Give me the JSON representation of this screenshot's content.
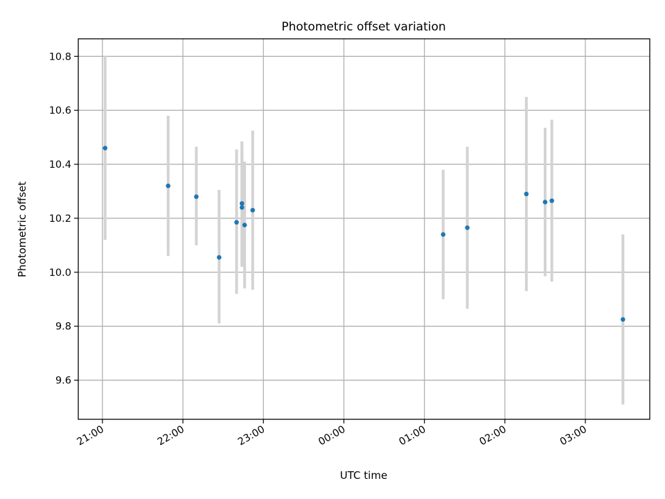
{
  "chart_data": {
    "type": "scatter",
    "title": "Photometric offset variation",
    "xlabel": "UTC time",
    "ylabel": "Photometric offset",
    "x_axis_kind": "time (HH:MM UTC)",
    "xlim": [
      "20:42",
      "03:48"
    ],
    "ylim": [
      9.455,
      10.865
    ],
    "x_ticks": [
      {
        "time": "21:00",
        "label": "21:00"
      },
      {
        "time": "22:00",
        "label": "22:00"
      },
      {
        "time": "23:00",
        "label": "23:00"
      },
      {
        "time": "00:00",
        "label": "00:00"
      },
      {
        "time": "01:00",
        "label": "01:00"
      },
      {
        "time": "02:00",
        "label": "02:00"
      },
      {
        "time": "03:00",
        "label": "03:00"
      }
    ],
    "y_ticks": [
      {
        "value": 9.6,
        "label": "9.6"
      },
      {
        "value": 9.8,
        "label": "9.8"
      },
      {
        "value": 10.0,
        "label": "10.0"
      },
      {
        "value": 10.2,
        "label": "10.2"
      },
      {
        "value": 10.4,
        "label": "10.4"
      },
      {
        "value": 10.6,
        "label": "10.6"
      },
      {
        "value": 10.8,
        "label": "10.8"
      }
    ],
    "grid": true,
    "marker_color": "#1f77b4",
    "errorbar_color": "#d3d3d3",
    "points": [
      {
        "time": "21:02",
        "y": 10.46,
        "lo": 10.12,
        "hi": 10.8
      },
      {
        "time": "21:49",
        "y": 10.32,
        "lo": 10.06,
        "hi": 10.58
      },
      {
        "time": "22:10",
        "y": 10.28,
        "lo": 10.1,
        "hi": 10.465
      },
      {
        "time": "22:27",
        "y": 10.055,
        "lo": 9.81,
        "hi": 10.305
      },
      {
        "time": "22:40",
        "y": 10.185,
        "lo": 9.92,
        "hi": 10.455
      },
      {
        "time": "22:44",
        "y": 10.255,
        "lo": 10.03,
        "hi": 10.485
      },
      {
        "time": "22:44",
        "y": 10.24,
        "lo": 10.02,
        "hi": 10.47
      },
      {
        "time": "22:46",
        "y": 10.175,
        "lo": 9.94,
        "hi": 10.41
      },
      {
        "time": "22:52",
        "y": 10.23,
        "lo": 9.935,
        "hi": 10.525
      },
      {
        "time": "01:14",
        "y": 10.14,
        "lo": 9.9,
        "hi": 10.38
      },
      {
        "time": "01:32",
        "y": 10.165,
        "lo": 9.865,
        "hi": 10.465
      },
      {
        "time": "02:16",
        "y": 10.29,
        "lo": 9.93,
        "hi": 10.65
      },
      {
        "time": "02:30",
        "y": 10.26,
        "lo": 9.985,
        "hi": 10.535
      },
      {
        "time": "02:35",
        "y": 10.265,
        "lo": 9.965,
        "hi": 10.565
      },
      {
        "time": "03:28",
        "y": 9.825,
        "lo": 9.51,
        "hi": 10.14
      }
    ]
  }
}
